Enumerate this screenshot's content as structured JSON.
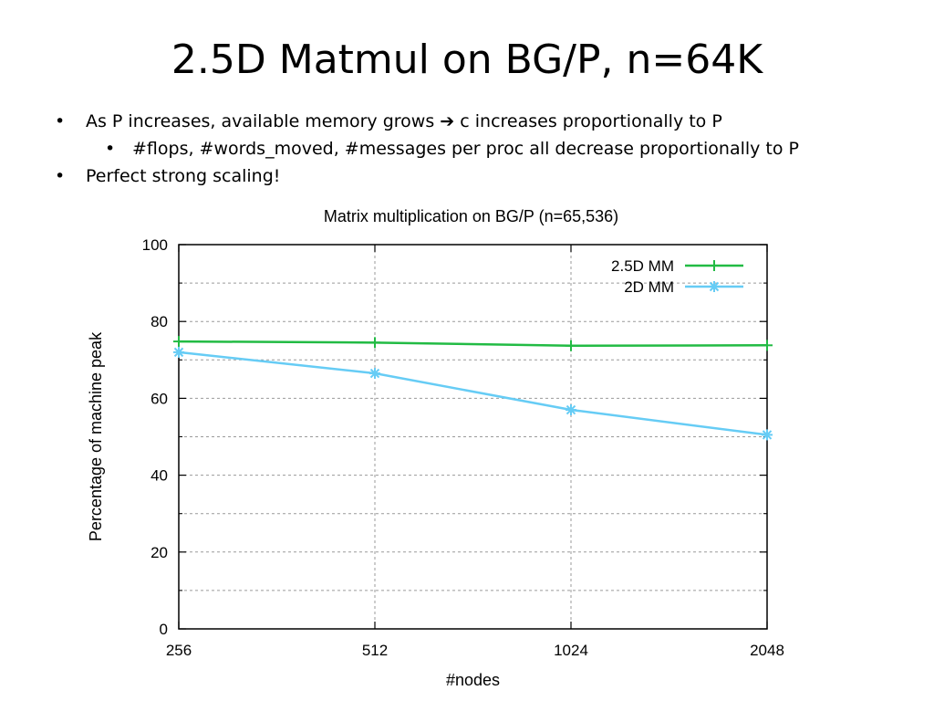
{
  "slide": {
    "title": "2.5D Matmul on BG/P, n=64K",
    "bullet_char": "•",
    "bullets": [
      {
        "text_before": "As P increases, available memory grows",
        "arrow": "➔",
        "text_after": "c increases proportionally to P"
      },
      {
        "text": "#flops, #words_moved, #messages per proc all decrease proportionally to P"
      },
      {
        "text": "Perfect strong scaling!"
      }
    ]
  },
  "chart_data": {
    "type": "line",
    "title": "Matrix multiplication on BG/P (n=65,536)",
    "xlabel": "#nodes",
    "ylabel": "Percentage of machine peak",
    "categories": [
      "256",
      "512",
      "1024",
      "2048"
    ],
    "ylim": [
      0,
      100
    ],
    "yticks": [
      0,
      20,
      40,
      60,
      80,
      100
    ],
    "grid": true,
    "legend_position": "top-right",
    "series": [
      {
        "name": "2.5D MM",
        "values": [
          74.8,
          74.5,
          73.7,
          73.8
        ],
        "color": "#22bb44",
        "marker": "plus"
      },
      {
        "name": "2D MM",
        "values": [
          72.0,
          66.5,
          57.0,
          50.5
        ],
        "color": "#66ccf5",
        "marker": "star"
      }
    ]
  }
}
